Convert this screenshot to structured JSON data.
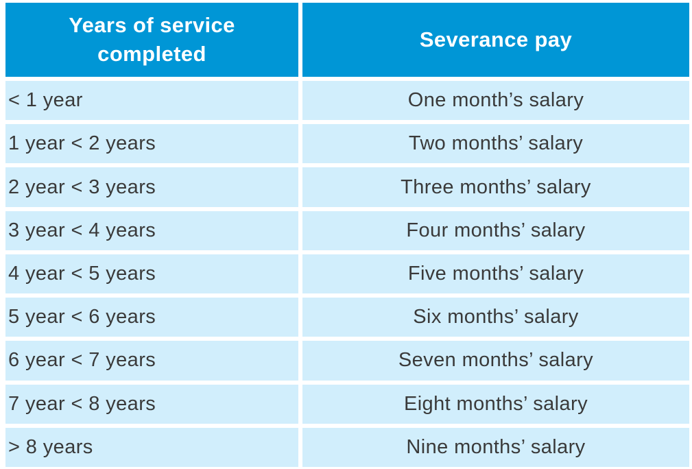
{
  "chart_data": {
    "type": "table",
    "title": "",
    "columns": [
      "Years of service completed",
      "Severance pay"
    ],
    "rows": [
      [
        "< 1 year",
        "One month’s salary"
      ],
      [
        "1 year < 2 years",
        "Two months’ salary"
      ],
      [
        "2 year < 3 years",
        "Three months’ salary"
      ],
      [
        "3 year < 4 years",
        "Four months’ salary"
      ],
      [
        "4 year < 5 years",
        "Five months’ salary"
      ],
      [
        "5 year < 6 years",
        "Six months’ salary"
      ],
      [
        "6 year < 7 years",
        "Seven months’ salary"
      ],
      [
        "7 year < 8 years",
        "Eight months’ salary"
      ],
      [
        "> 8 years",
        "Nine months’ salary"
      ]
    ],
    "colors": {
      "header_bg": "#0096d6",
      "header_text": "#ffffff",
      "row_bg": "#d1eefc",
      "row_text": "#3a3a3a",
      "divider": "#ffffff"
    },
    "layout": {
      "grid": "off",
      "legend": "none",
      "header_position": "top"
    }
  }
}
